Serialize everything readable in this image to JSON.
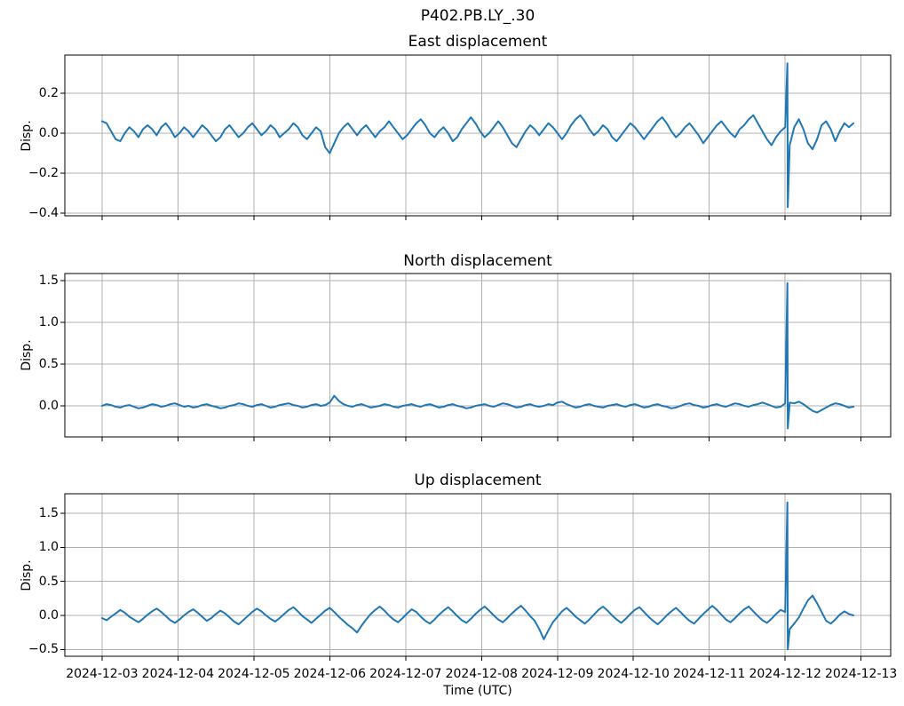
{
  "figure": {
    "suptitle": "P402.PB.LY_.30",
    "line_color": "#1f77b4",
    "grid_color": "#b0b0b0",
    "background": "#ffffff"
  },
  "chart_data": {
    "type": "line",
    "grid": true,
    "legend": false,
    "x_axis": {
      "label": "Time (UTC)",
      "tick_labels": [
        "2024-12-03",
        "2024-12-04",
        "2024-12-05",
        "2024-12-06",
        "2024-12-07",
        "2024-12-08",
        "2024-12-09",
        "2024-12-10",
        "2024-12-11",
        "2024-12-12",
        "2024-12-13"
      ],
      "tick_positions_days": [
        0,
        1,
        2,
        3,
        4,
        5,
        6,
        7,
        8,
        9,
        10
      ],
      "xlim_days": [
        -0.49,
        10.39
      ],
      "t_start_days": 0,
      "t_step_days": 0.06
    },
    "subplots": [
      {
        "title": "East displacement",
        "ylabel": "Disp.",
        "ytick_values": [
          0.2,
          0.0,
          -0.2,
          -0.4
        ],
        "ytick_labels": [
          "0.2",
          "0.0",
          "−0.2",
          "−0.4"
        ],
        "ylim": [
          -0.413,
          0.391
        ],
        "spike": {
          "t_days": 9.03,
          "max": 0.35,
          "min": -0.37
        },
        "values": [
          0.06,
          0.05,
          0.01,
          -0.03,
          -0.04,
          0,
          0.03,
          0.01,
          -0.02,
          0.02,
          0.04,
          0.02,
          -0.01,
          0.03,
          0.05,
          0.02,
          -0.02,
          0,
          0.03,
          0.01,
          -0.02,
          0.01,
          0.04,
          0.02,
          -0.01,
          -0.04,
          -0.02,
          0.02,
          0.04,
          0.01,
          -0.02,
          0,
          0.03,
          0.05,
          0.02,
          -0.01,
          0.01,
          0.04,
          0.02,
          -0.02,
          0,
          0.02,
          0.05,
          0.03,
          -0.01,
          -0.03,
          0,
          0.03,
          0.01,
          -0.07,
          -0.1,
          -0.05,
          0,
          0.03,
          0.05,
          0.02,
          -0.01,
          0.02,
          0.04,
          0.01,
          -0.02,
          0.01,
          0.03,
          0.06,
          0.03,
          0,
          -0.03,
          -0.01,
          0.02,
          0.05,
          0.07,
          0.04,
          0,
          -0.02,
          0.01,
          0.03,
          0,
          -0.04,
          -0.02,
          0.02,
          0.05,
          0.08,
          0.05,
          0.01,
          -0.02,
          0,
          0.03,
          0.06,
          0.03,
          -0.01,
          -0.05,
          -0.07,
          -0.03,
          0.01,
          0.04,
          0.02,
          -0.01,
          0.02,
          0.05,
          0.03,
          0,
          -0.03,
          0,
          0.04,
          0.07,
          0.09,
          0.06,
          0.02,
          -0.01,
          0.01,
          0.04,
          0.02,
          -0.02,
          -0.04,
          -0.01,
          0.02,
          0.05,
          0.03,
          0,
          -0.03,
          0,
          0.03,
          0.06,
          0.08,
          0.05,
          0.01,
          -0.02,
          0,
          0.03,
          0.05,
          0.02,
          -0.01,
          -0.05,
          -0.02,
          0.01,
          0.04,
          0.06,
          0.03,
          0,
          -0.02,
          0.02,
          0.04,
          0.07,
          0.09,
          0.05,
          0.01,
          -0.03,
          -0.06,
          -0.02,
          0.01,
          0.03,
          -0.06,
          0.03,
          0.07,
          0.02,
          -0.05,
          -0.08,
          -0.03,
          0.04,
          0.06,
          0.02,
          -0.04,
          0.01,
          0.05,
          0.03,
          0.05
        ]
      },
      {
        "title": "North displacement",
        "ylabel": "Disp.",
        "ytick_values": [
          1.5,
          1.0,
          0.5,
          0.0
        ],
        "ytick_labels": [
          "1.5",
          "1.0",
          "0.5",
          "0.0"
        ],
        "ylim": [
          -0.372,
          1.585
        ],
        "spike": {
          "t_days": 9.03,
          "max": 1.47,
          "min": -0.27
        },
        "values": [
          0,
          0.02,
          0.01,
          -0.01,
          -0.02,
          0,
          0.01,
          -0.01,
          -0.03,
          -0.02,
          0,
          0.02,
          0.01,
          -0.01,
          0,
          0.02,
          0.03,
          0.01,
          -0.01,
          0,
          -0.02,
          -0.01,
          0.01,
          0.02,
          0,
          -0.01,
          -0.03,
          -0.02,
          0,
          0.01,
          0.03,
          0.02,
          0,
          -0.01,
          0.01,
          0.02,
          0,
          -0.02,
          -0.01,
          0.01,
          0.02,
          0.03,
          0.01,
          0,
          -0.02,
          -0.01,
          0.01,
          0.02,
          0,
          0.01,
          0.04,
          0.12,
          0.06,
          0.02,
          0,
          -0.01,
          0.01,
          0.02,
          0,
          -0.02,
          -0.01,
          0,
          0.02,
          0.01,
          -0.01,
          -0.02,
          0,
          0.01,
          0.02,
          0,
          -0.01,
          0.01,
          0.02,
          0,
          -0.02,
          -0.01,
          0.01,
          0.02,
          0,
          -0.01,
          -0.03,
          -0.02,
          0,
          0.01,
          0.02,
          0,
          -0.01,
          0.01,
          0.03,
          0.02,
          0,
          -0.02,
          -0.01,
          0.01,
          0.02,
          0,
          -0.01,
          0,
          0.02,
          0.01,
          0.04,
          0.05,
          0.02,
          0,
          -0.02,
          -0.01,
          0.01,
          0.02,
          0,
          -0.01,
          -0.02,
          0,
          0.01,
          0.02,
          0,
          -0.01,
          0.01,
          0.02,
          0,
          -0.02,
          -0.01,
          0.01,
          0.02,
          0,
          -0.01,
          -0.03,
          -0.02,
          0,
          0.02,
          0.03,
          0.01,
          0,
          -0.02,
          -0.01,
          0.01,
          0.02,
          0,
          -0.01,
          0.01,
          0.03,
          0.02,
          0,
          -0.01,
          0.01,
          0.02,
          0.04,
          0.02,
          0,
          -0.02,
          -0.01,
          0.03,
          0.04,
          0.03,
          0.05,
          0.02,
          -0.02,
          -0.06,
          -0.08,
          -0.05,
          -0.02,
          0.01,
          0.03,
          0.02,
          0,
          -0.02,
          -0.01
        ]
      },
      {
        "title": "Up displacement",
        "ylabel": "Disp.",
        "ytick_values": [
          1.5,
          1.0,
          0.5,
          0.0,
          -0.5
        ],
        "ytick_labels": [
          "1.5",
          "1.0",
          "0.5",
          "0.0",
          "−0.5"
        ],
        "ylim": [
          -0.6,
          1.786
        ],
        "spike": {
          "t_days": 9.03,
          "max": 1.66,
          "min": -0.5
        },
        "values": [
          -0.04,
          -0.07,
          -0.02,
          0.03,
          0.08,
          0.04,
          -0.02,
          -0.06,
          -0.1,
          -0.05,
          0.01,
          0.06,
          0.1,
          0.05,
          -0.01,
          -0.07,
          -0.11,
          -0.06,
          0,
          0.05,
          0.09,
          0.04,
          -0.02,
          -0.08,
          -0.04,
          0.02,
          0.07,
          0.03,
          -0.03,
          -0.09,
          -0.13,
          -0.07,
          -0.01,
          0.05,
          0.1,
          0.06,
          0,
          -0.05,
          -0.09,
          -0.04,
          0.02,
          0.08,
          0.12,
          0.06,
          -0.01,
          -0.06,
          -0.11,
          -0.05,
          0.01,
          0.07,
          0.11,
          0.05,
          -0.02,
          -0.08,
          -0.14,
          -0.19,
          -0.25,
          -0.15,
          -0.06,
          0.02,
          0.08,
          0.13,
          0.07,
          0,
          -0.06,
          -0.1,
          -0.04,
          0.03,
          0.09,
          0.05,
          -0.02,
          -0.08,
          -0.12,
          -0.06,
          0.01,
          0.07,
          0.12,
          0.06,
          -0.01,
          -0.07,
          -0.11,
          -0.05,
          0.02,
          0.08,
          0.13,
          0.07,
          0,
          -0.06,
          -0.1,
          -0.04,
          0.03,
          0.09,
          0.14,
          0.07,
          -0.01,
          -0.08,
          -0.2,
          -0.35,
          -0.22,
          -0.1,
          -0.02,
          0.06,
          0.11,
          0.05,
          -0.02,
          -0.07,
          -0.12,
          -0.06,
          0.01,
          0.08,
          0.13,
          0.07,
          0,
          -0.06,
          -0.11,
          -0.05,
          0.02,
          0.08,
          0.12,
          0.05,
          -0.02,
          -0.08,
          -0.13,
          -0.07,
          0,
          0.06,
          0.11,
          0.05,
          -0.02,
          -0.08,
          -0.12,
          -0.05,
          0.02,
          0.08,
          0.14,
          0.08,
          0.01,
          -0.06,
          -0.1,
          -0.04,
          0.03,
          0.09,
          0.13,
          0.06,
          -0.01,
          -0.07,
          -0.11,
          -0.05,
          0.02,
          0.08,
          0.05,
          -0.2,
          -0.12,
          -0.03,
          0.1,
          0.22,
          0.29,
          0.18,
          0.05,
          -0.08,
          -0.12,
          -0.06,
          0.01,
          0.06,
          0.02,
          0
        ]
      }
    ]
  }
}
